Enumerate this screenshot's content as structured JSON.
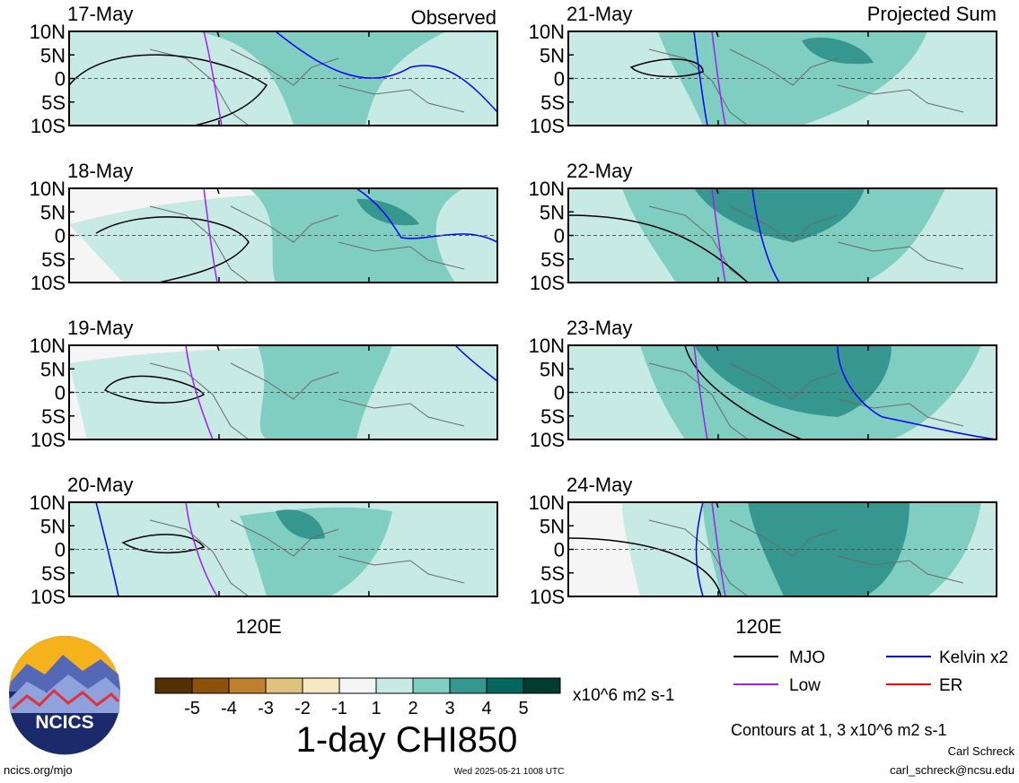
{
  "chart_data": {
    "type": "heatmap",
    "title": "1-day CHI850",
    "panel_titles": {
      "left": "Observed",
      "right": "Projected Sum"
    },
    "panels": [
      {
        "date": "17-May",
        "column": "left",
        "row": 0
      },
      {
        "date": "18-May",
        "column": "left",
        "row": 1
      },
      {
        "date": "19-May",
        "column": "left",
        "row": 2
      },
      {
        "date": "20-May",
        "column": "left",
        "row": 3
      },
      {
        "date": "21-May",
        "column": "right",
        "row": 0
      },
      {
        "date": "22-May",
        "column": "right",
        "row": 1
      },
      {
        "date": "23-May",
        "column": "right",
        "row": 2
      },
      {
        "date": "24-May",
        "column": "right",
        "row": 3
      }
    ],
    "y_tick_labels": [
      "10N",
      "5N",
      "0",
      "5S",
      "10S"
    ],
    "x_tick_labels": [
      "120E"
    ],
    "colorbar": {
      "tick_labels": [
        "-5",
        "-4",
        "-3",
        "-2",
        "-1",
        "1",
        "2",
        "3",
        "4",
        "5"
      ],
      "units": "x10^6 m2 s-1",
      "colors": [
        "#543005",
        "#8c510a",
        "#bf812d",
        "#dfc27d",
        "#f6e8c3",
        "#f5f5f5",
        "#c7eae5",
        "#80cdc1",
        "#35978f",
        "#01665e",
        "#003c30"
      ]
    },
    "legend": [
      {
        "label": "MJO",
        "color": "#000000"
      },
      {
        "label": "Kelvin x2",
        "color": "#0000ff"
      },
      {
        "label": "Low",
        "color": "#a020f0"
      },
      {
        "label": "ER",
        "color": "#ff0000"
      }
    ],
    "contour_note": "Contours at 1, 3 x10^6 m2 s-1",
    "grid": false
  },
  "footer": {
    "logo_text": "NCICS",
    "site": "ncics.org/mjo",
    "timestamp": "Wed 2025-05-21 1008 UTC",
    "author": "Carl Schreck",
    "email": "carl_schreck@ncsu.edu"
  }
}
